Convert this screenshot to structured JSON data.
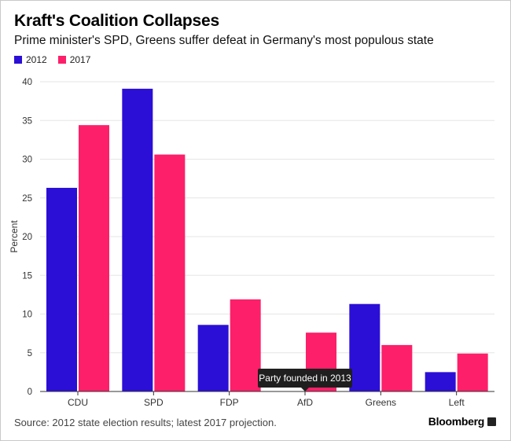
{
  "title": "Kraft's Coalition Collapses",
  "subtitle": "Prime minister's SPD, Greens suffer defeat in Germany's most populous state",
  "source": "Source: 2012 state election results; latest 2017 projection.",
  "brand": "Bloomberg",
  "colors": {
    "s2012": "#2b0fd6",
    "s2017": "#fd1f69",
    "grid": "#e6e6e6",
    "tooltip_bg": "#1f1f1f"
  },
  "chart_data": {
    "type": "bar",
    "categories": [
      "CDU",
      "SPD",
      "FDP",
      "AfD",
      "Greens",
      "Left"
    ],
    "series": [
      {
        "name": "2012",
        "values": [
          26.3,
          39.1,
          8.6,
          null,
          11.3,
          2.5
        ]
      },
      {
        "name": "2017",
        "values": [
          34.4,
          30.6,
          11.9,
          7.6,
          6.0,
          4.9
        ]
      }
    ],
    "xlabel": "",
    "ylabel": "Percent",
    "ylim": [
      0,
      40
    ],
    "yticks": [
      0,
      5,
      10,
      15,
      20,
      25,
      30,
      35,
      40
    ],
    "grid": true,
    "legend": "top-left",
    "annotation": {
      "category": "AfD",
      "text": "Party founded in 2013"
    }
  }
}
